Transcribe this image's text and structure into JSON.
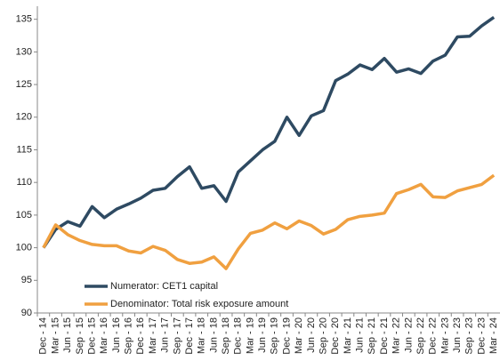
{
  "chart_data": {
    "type": "line",
    "categories": [
      "Dec - 14",
      "Mar - 15",
      "Jun - 15",
      "Sep - 15",
      "Dec - 15",
      "Mar - 16",
      "Jun - 16",
      "Sep - 16",
      "Dec - 16",
      "Mar - 17",
      "Jun - 17",
      "Sep - 17",
      "Dec - 17",
      "Mar - 18",
      "Jun - 18",
      "Sep - 18",
      "Dec - 18",
      "Mar - 19",
      "Jun - 19",
      "Sep - 19",
      "Dec - 19",
      "Mar - 20",
      "Jun - 20",
      "Sep - 20",
      "Dec - 20",
      "Mar - 21",
      "Jun - 21",
      "Sep - 21",
      "Dec - 21",
      "Mar - 22",
      "Jun - 22",
      "Sep - 22",
      "Dec - 22",
      "Mar - 23",
      "Jun - 23",
      "Sep - 23",
      "Dec - 23",
      "Mar - 24"
    ],
    "series": [
      {
        "name": "Numerator: CET1 capital",
        "color": "#2e4a62",
        "values": [
          100,
          102.8,
          104,
          103.3,
          106.3,
          104.6,
          105.9,
          106.7,
          107.6,
          108.8,
          109.1,
          110.9,
          112.4,
          109.1,
          109.5,
          107.1,
          111.6,
          113.3,
          115,
          116.3,
          120,
          117.2,
          120.2,
          121,
          125.6,
          126.6,
          128,
          127.3,
          129,
          126.9,
          127.4,
          126.7,
          128.6,
          129.5,
          132.3,
          132.4,
          134,
          135.3
        ]
      },
      {
        "name": "Denominator: Total risk exposure amount",
        "color": "#f0a040",
        "values": [
          100,
          103.5,
          102,
          101.1,
          100.5,
          100.3,
          100.3,
          99.5,
          99.2,
          100.2,
          99.6,
          98.2,
          97.6,
          97.8,
          98.6,
          96.8,
          99.8,
          102.2,
          102.7,
          103.8,
          102.9,
          104.1,
          103.4,
          102.1,
          102.8,
          104.3,
          104.8,
          105,
          105.3,
          108.3,
          108.9,
          109.7,
          107.8,
          107.7,
          108.7,
          109.2,
          109.7,
          111.1
        ]
      }
    ],
    "ylim": [
      90,
      137
    ],
    "yticks": [
      90,
      95,
      100,
      105,
      110,
      115,
      120,
      125,
      130,
      135
    ],
    "grid": false,
    "legend": "lower-left"
  }
}
